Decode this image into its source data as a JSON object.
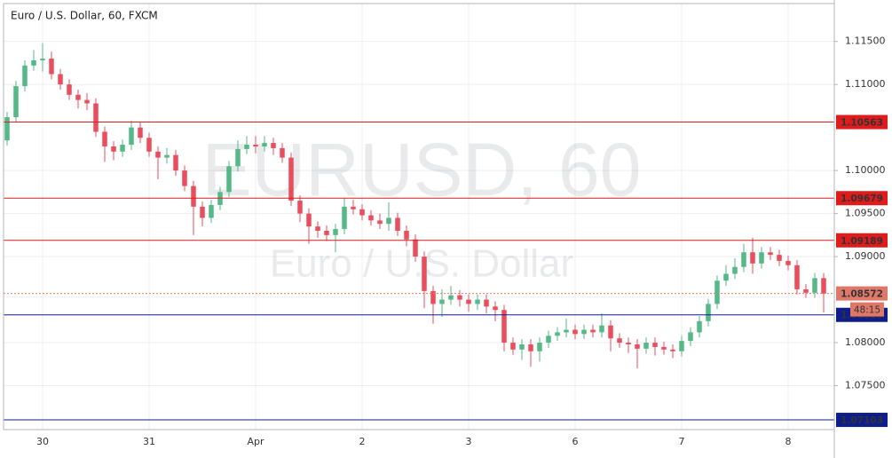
{
  "chart_data": {
    "type": "candlestick",
    "title": "Euro / U.S. Dollar, 60, FXCM",
    "watermark": "EURUSD, 60",
    "watermark_subtitle": "Euro / U.S. Dollar",
    "up_color": "#53b987",
    "down_color": "#eb4d5c",
    "open": [
      1.1035,
      1.1062,
      1.1098,
      1.1122,
      1.1128,
      1.113,
      1.1112,
      1.11,
      1.1088,
      1.1082,
      1.1078,
      1.1045,
      1.1028,
      1.1022,
      1.103,
      1.105,
      1.1038,
      1.1022,
      1.1015,
      1.1018,
      1.1,
      1.0982,
      1.0958,
      1.0945,
      1.096,
      1.0975,
      1.1005,
      1.1025,
      1.103,
      1.1028,
      1.1032,
      1.1026,
      1.1015,
      1.0965,
      1.095,
      1.0935,
      1.093,
      1.0925,
      1.0932,
      1.0958,
      1.0955,
      1.0948,
      1.0942,
      1.0938,
      1.0945,
      1.093,
      1.092,
      1.09,
      1.086,
      1.0845,
      1.085,
      1.0855,
      1.085,
      1.0845,
      1.085,
      1.0842,
      1.0838,
      1.08,
      1.0792,
      1.0798,
      1.079,
      1.08,
      1.0808,
      1.0812,
      1.0815,
      1.081,
      1.0815,
      1.0812,
      1.082,
      1.0805,
      1.08,
      1.0798,
      1.0793,
      1.08,
      1.0795,
      1.0792,
      1.079,
      1.0802,
      1.0812,
      1.0825,
      1.0845,
      1.0872,
      1.088,
      1.0888,
      1.0905,
      1.0892,
      1.0905,
      1.0902,
      1.0895,
      1.089,
      1.0862,
      1.0858,
      1.0875
    ],
    "high": [
      1.1068,
      1.1104,
      1.1128,
      1.114,
      1.1148,
      1.1138,
      1.1118,
      1.1106,
      1.1094,
      1.109,
      1.1084,
      1.1051,
      1.1034,
      1.1036,
      1.1058,
      1.1056,
      1.1044,
      1.1028,
      1.1026,
      1.1024,
      1.1006,
      1.0988,
      1.0964,
      1.0966,
      1.0981,
      1.1011,
      1.1035,
      1.104,
      1.104,
      1.104,
      1.1038,
      1.1032,
      1.1021,
      1.0971,
      1.0956,
      1.0941,
      1.0936,
      1.0938,
      1.0968,
      1.0966,
      1.0961,
      1.0954,
      1.095,
      1.0963,
      1.0951,
      1.0936,
      1.0926,
      1.0906,
      1.0866,
      1.0862,
      1.0866,
      1.0861,
      1.0856,
      1.0856,
      1.0856,
      1.0848,
      1.0844,
      1.0806,
      1.0804,
      1.0804,
      1.0806,
      1.0814,
      1.0818,
      1.0828,
      1.0821,
      1.0821,
      1.0821,
      1.0834,
      1.0826,
      1.0811,
      1.0806,
      1.0804,
      1.0806,
      1.0806,
      1.0801,
      1.0798,
      1.0808,
      1.0818,
      1.0831,
      1.0851,
      1.0878,
      1.089,
      1.0898,
      1.0915,
      1.0922,
      1.0911,
      1.0911,
      1.0908,
      1.0901,
      1.0896,
      1.0868,
      1.0881,
      1.0881
    ],
    "low": [
      1.1029,
      1.1056,
      1.1092,
      1.1116,
      1.1115,
      1.1106,
      1.1094,
      1.1082,
      1.1072,
      1.107,
      1.1039,
      1.101,
      1.1012,
      1.1016,
      1.1024,
      1.1032,
      1.1016,
      1.099,
      1.1008,
      1.0994,
      1.0976,
      1.0925,
      1.0935,
      1.0939,
      1.0954,
      1.0969,
      1.0999,
      1.1019,
      1.102,
      1.1022,
      1.1018,
      1.1009,
      1.0959,
      1.094,
      1.0915,
      1.0922,
      1.0918,
      1.0905,
      1.0926,
      1.0949,
      1.0942,
      1.0936,
      1.0932,
      1.093,
      1.0924,
      1.0912,
      1.0894,
      1.084,
      1.0822,
      1.083,
      1.0844,
      1.0842,
      1.0836,
      1.0838,
      1.0834,
      1.0825,
      1.079,
      1.0786,
      1.078,
      1.0772,
      1.0778,
      1.0794,
      1.0802,
      1.0806,
      1.0804,
      1.0804,
      1.0806,
      1.0806,
      1.079,
      1.0794,
      1.0788,
      1.077,
      1.0787,
      1.0785,
      1.0786,
      1.0782,
      1.0784,
      1.0796,
      1.0806,
      1.0819,
      1.0839,
      1.0866,
      1.0874,
      1.0882,
      1.088,
      1.0886,
      1.0896,
      1.0889,
      1.0884,
      1.0856,
      1.0852,
      1.0852,
      1.0835
    ],
    "close": [
      1.1062,
      1.1098,
      1.1122,
      1.1128,
      1.113,
      1.1112,
      1.11,
      1.1088,
      1.1082,
      1.1078,
      1.1045,
      1.1028,
      1.1022,
      1.103,
      1.105,
      1.1038,
      1.1022,
      1.1015,
      1.1018,
      1.1,
      1.0982,
      1.0958,
      1.0945,
      1.096,
      1.0975,
      1.1005,
      1.1025,
      1.103,
      1.1028,
      1.1032,
      1.1026,
      1.1015,
      1.0965,
      1.095,
      1.0935,
      1.093,
      1.0925,
      1.0932,
      1.0958,
      1.0955,
      1.0948,
      1.0942,
      1.0938,
      1.0945,
      1.093,
      1.092,
      1.09,
      1.086,
      1.0845,
      1.085,
      1.0855,
      1.085,
      1.0845,
      1.085,
      1.0842,
      1.0838,
      1.08,
      1.0792,
      1.0798,
      1.079,
      1.08,
      1.0808,
      1.0812,
      1.0815,
      1.081,
      1.0815,
      1.0812,
      1.082,
      1.0805,
      1.08,
      1.0798,
      1.0793,
      1.08,
      1.0795,
      1.0792,
      1.079,
      1.0802,
      1.0812,
      1.0825,
      1.0845,
      1.0872,
      1.088,
      1.0888,
      1.0905,
      1.0892,
      1.0905,
      1.0902,
      1.0895,
      1.089,
      1.0862,
      1.0858,
      1.0875,
      1.0857
    ],
    "xlim": [
      -0.4,
      93.2
    ],
    "xticks": [
      {
        "value": 4,
        "label": "30"
      },
      {
        "value": 16,
        "label": "31"
      },
      {
        "value": 28,
        "label": "Apr"
      },
      {
        "value": 40,
        "label": "2"
      },
      {
        "value": 52,
        "label": "3"
      },
      {
        "value": 64,
        "label": "6"
      },
      {
        "value": 76,
        "label": "7"
      },
      {
        "value": 88,
        "label": "8"
      }
    ],
    "ylim": [
      1.0699,
      1.1194
    ],
    "yticks": [
      {
        "value": 1.115,
        "label": "1.11500"
      },
      {
        "value": 1.11,
        "label": "1.11000"
      },
      {
        "value": 1.1,
        "label": "1.10000"
      },
      {
        "value": 1.095,
        "label": "1.09500"
      },
      {
        "value": 1.09,
        "label": "1.09000"
      },
      {
        "value": 1.08,
        "label": "1.08000"
      },
      {
        "value": 1.075,
        "label": "1.07500"
      }
    ],
    "grid": true,
    "levels": [
      {
        "value": 1.10563,
        "color": "#e01b1b"
      },
      {
        "value": 1.09679,
        "color": "#e01b1b"
      },
      {
        "value": 1.09189,
        "color": "#e01b1b"
      },
      {
        "value": 1.08323,
        "color": "#0d1d8c"
      },
      {
        "value": 1.07103,
        "color": "#0d1d8c"
      }
    ],
    "current_price": {
      "value": 1.08572,
      "countdown": "48:15",
      "color": "#e0786a"
    }
  }
}
